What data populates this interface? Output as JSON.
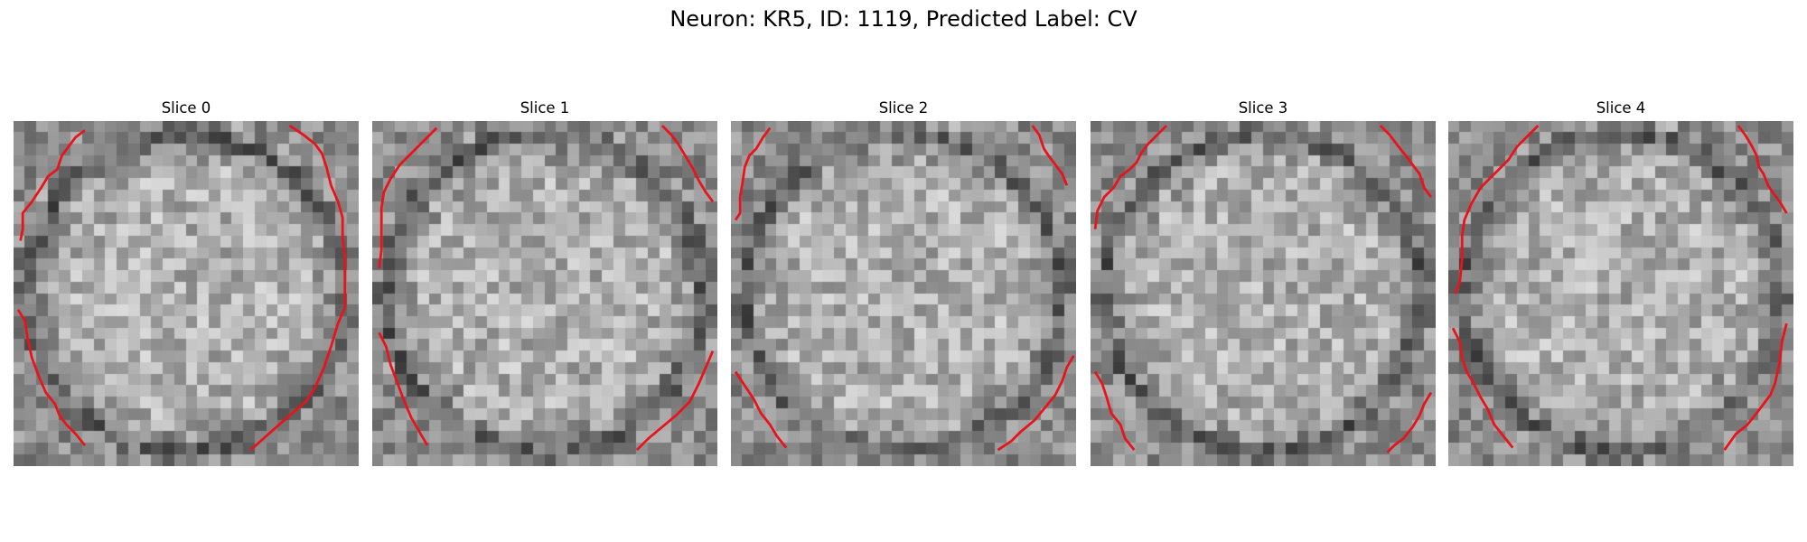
{
  "figure": {
    "title": "Neuron: KR5, ID: 1119, Predicted Label: CV"
  },
  "panels": [
    {
      "title": "Slice 0",
      "seed": 11,
      "contours": [
        [
          [
            62,
            8
          ],
          [
            54,
            14
          ],
          [
            48,
            22
          ],
          [
            42,
            30
          ],
          [
            38,
            42
          ],
          [
            30,
            48
          ],
          [
            24,
            58
          ],
          [
            16,
            70
          ],
          [
            8,
            80
          ],
          [
            8,
            94
          ],
          [
            6,
            104
          ]
        ],
        [
          [
            4,
            164
          ],
          [
            10,
            174
          ],
          [
            12,
            188
          ],
          [
            16,
            206
          ],
          [
            22,
            222
          ],
          [
            28,
            236
          ],
          [
            36,
            246
          ],
          [
            40,
            256
          ],
          [
            46,
            264
          ],
          [
            54,
            272
          ],
          [
            62,
            282
          ]
        ],
        [
          [
            240,
            4
          ],
          [
            252,
            12
          ],
          [
            262,
            20
          ],
          [
            268,
            28
          ],
          [
            272,
            40
          ],
          [
            276,
            56
          ],
          [
            282,
            70
          ],
          [
            286,
            84
          ],
          [
            286,
            100
          ],
          [
            288,
            120
          ],
          [
            288,
            140
          ],
          [
            288,
            162
          ],
          [
            282,
            176
          ],
          [
            276,
            196
          ],
          [
            270,
            214
          ],
          [
            262,
            232
          ],
          [
            254,
            244
          ],
          [
            240,
            256
          ],
          [
            224,
            270
          ],
          [
            206,
            286
          ]
        ]
      ]
    },
    {
      "title": "Slice 1",
      "seed": 23,
      "contours": [
        [
          [
            56,
            6
          ],
          [
            48,
            14
          ],
          [
            40,
            22
          ],
          [
            32,
            30
          ],
          [
            24,
            38
          ],
          [
            16,
            50
          ],
          [
            10,
            62
          ],
          [
            8,
            76
          ],
          [
            8,
            96
          ],
          [
            8,
            112
          ],
          [
            6,
            128
          ]
        ],
        [
          [
            6,
            184
          ],
          [
            12,
            196
          ],
          [
            16,
            212
          ],
          [
            22,
            228
          ],
          [
            28,
            244
          ],
          [
            34,
            258
          ],
          [
            42,
            272
          ],
          [
            48,
            282
          ]
        ],
        [
          [
            252,
            4
          ],
          [
            260,
            12
          ],
          [
            266,
            20
          ],
          [
            272,
            30
          ],
          [
            278,
            40
          ],
          [
            284,
            52
          ],
          [
            290,
            62
          ],
          [
            296,
            70
          ]
        ],
        [
          [
            296,
            200
          ],
          [
            290,
            214
          ],
          [
            284,
            228
          ],
          [
            276,
            244
          ],
          [
            264,
            256
          ],
          [
            252,
            266
          ],
          [
            240,
            276
          ],
          [
            230,
            286
          ]
        ]
      ]
    },
    {
      "title": "Slice 2",
      "seed": 37,
      "contours": [
        [
          [
            34,
            6
          ],
          [
            28,
            14
          ],
          [
            22,
            24
          ],
          [
            16,
            30
          ],
          [
            12,
            40
          ],
          [
            10,
            54
          ],
          [
            8,
            66
          ],
          [
            8,
            80
          ],
          [
            4,
            86
          ]
        ],
        [
          [
            4,
            218
          ],
          [
            12,
            230
          ],
          [
            20,
            242
          ],
          [
            26,
            254
          ],
          [
            34,
            264
          ],
          [
            40,
            274
          ],
          [
            48,
            284
          ]
        ],
        [
          [
            262,
            4
          ],
          [
            268,
            12
          ],
          [
            272,
            24
          ],
          [
            276,
            30
          ],
          [
            282,
            38
          ],
          [
            288,
            46
          ],
          [
            292,
            56
          ]
        ],
        [
          [
            298,
            204
          ],
          [
            292,
            214
          ],
          [
            288,
            226
          ],
          [
            282,
            238
          ],
          [
            274,
            248
          ],
          [
            264,
            260
          ],
          [
            252,
            270
          ],
          [
            244,
            278
          ],
          [
            232,
            286
          ]
        ]
      ]
    },
    {
      "title": "Slice 3",
      "seed": 53,
      "contours": [
        [
          [
            66,
            4
          ],
          [
            58,
            12
          ],
          [
            50,
            20
          ],
          [
            44,
            28
          ],
          [
            40,
            36
          ],
          [
            34,
            42
          ],
          [
            26,
            48
          ],
          [
            20,
            58
          ],
          [
            12,
            66
          ],
          [
            6,
            78
          ],
          [
            4,
            94
          ]
        ],
        [
          [
            4,
            218
          ],
          [
            10,
            228
          ],
          [
            14,
            240
          ],
          [
            18,
            254
          ],
          [
            26,
            264
          ],
          [
            30,
            276
          ],
          [
            38,
            286
          ]
        ],
        [
          [
            252,
            4
          ],
          [
            260,
            12
          ],
          [
            266,
            20
          ],
          [
            274,
            30
          ],
          [
            280,
            38
          ],
          [
            286,
            46
          ],
          [
            290,
            58
          ],
          [
            296,
            66
          ]
        ],
        [
          [
            296,
            236
          ],
          [
            290,
            246
          ],
          [
            286,
            256
          ],
          [
            280,
            266
          ],
          [
            272,
            276
          ],
          [
            264,
            282
          ],
          [
            258,
            288
          ]
        ]
      ]
    },
    {
      "title": "Slice 4",
      "seed": 71,
      "contours": [
        [
          [
            78,
            4
          ],
          [
            70,
            12
          ],
          [
            60,
            22
          ],
          [
            52,
            34
          ],
          [
            44,
            42
          ],
          [
            36,
            50
          ],
          [
            28,
            58
          ],
          [
            20,
            72
          ],
          [
            14,
            86
          ],
          [
            12,
            100
          ],
          [
            12,
            120
          ],
          [
            10,
            140
          ],
          [
            6,
            150
          ]
        ],
        [
          [
            4,
            180
          ],
          [
            10,
            192
          ],
          [
            12,
            206
          ],
          [
            16,
            218
          ],
          [
            22,
            228
          ],
          [
            28,
            240
          ],
          [
            34,
            250
          ],
          [
            40,
            264
          ],
          [
            48,
            274
          ],
          [
            56,
            284
          ]
        ],
        [
          [
            252,
            4
          ],
          [
            258,
            12
          ],
          [
            264,
            22
          ],
          [
            268,
            30
          ],
          [
            270,
            40
          ],
          [
            274,
            46
          ],
          [
            278,
            56
          ],
          [
            282,
            62
          ],
          [
            288,
            70
          ],
          [
            294,
            80
          ]
        ],
        [
          [
            294,
            176
          ],
          [
            290,
            192
          ],
          [
            288,
            210
          ],
          [
            284,
            228
          ],
          [
            280,
            238
          ],
          [
            274,
            246
          ],
          [
            268,
            254
          ],
          [
            260,
            264
          ],
          [
            250,
            272
          ],
          [
            240,
            286
          ]
        ]
      ]
    }
  ]
}
